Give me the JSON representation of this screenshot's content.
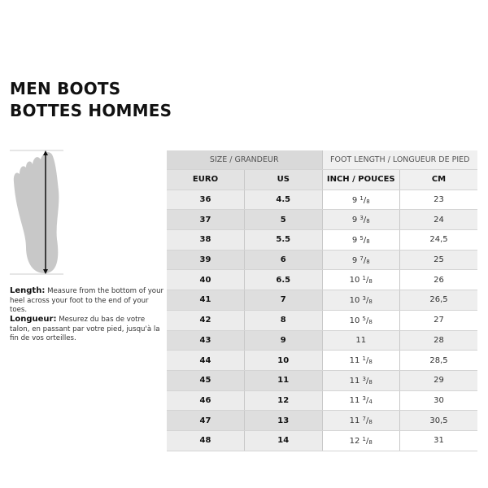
{
  "title": {
    "line1": "MEN BOOTS",
    "line2": "BOTTES HOMMES"
  },
  "instructions": {
    "en_label": "Length:",
    "en_text": "Measure from the bottom of your heel across your foot to the end of your toes.",
    "fr_label": "Longueur:",
    "fr_text": "Mesurez du bas de votre talon, en passant par votre pied, jusqu'à la fin de vos orteilles."
  },
  "table": {
    "group_headers": [
      "SIZE / GRANDEUR",
      "FOOT LENGTH / LONGUEUR DE PIED"
    ],
    "columns": [
      "EURO",
      "US",
      "INCH / POUCES",
      "CM"
    ],
    "rows": [
      {
        "euro": "36",
        "us": "4.5",
        "inch": {
          "whole": "9",
          "num": "1",
          "den": "8"
        },
        "cm": "23"
      },
      {
        "euro": "37",
        "us": "5",
        "inch": {
          "whole": "9",
          "num": "3",
          "den": "8"
        },
        "cm": "24"
      },
      {
        "euro": "38",
        "us": "5.5",
        "inch": {
          "whole": "9",
          "num": "5",
          "den": "8"
        },
        "cm": "24,5"
      },
      {
        "euro": "39",
        "us": "6",
        "inch": {
          "whole": "9",
          "num": "7",
          "den": "8"
        },
        "cm": "25"
      },
      {
        "euro": "40",
        "us": "6.5",
        "inch": {
          "whole": "10",
          "num": "1",
          "den": "8"
        },
        "cm": "26"
      },
      {
        "euro": "41",
        "us": "7",
        "inch": {
          "whole": "10",
          "num": "3",
          "den": "8"
        },
        "cm": "26,5"
      },
      {
        "euro": "42",
        "us": "8",
        "inch": {
          "whole": "10",
          "num": "5",
          "den": "8"
        },
        "cm": "27"
      },
      {
        "euro": "43",
        "us": "9",
        "inch": {
          "whole": "11",
          "num": "",
          "den": ""
        },
        "cm": "28"
      },
      {
        "euro": "44",
        "us": "10",
        "inch": {
          "whole": "11",
          "num": "1",
          "den": "8"
        },
        "cm": "28,5"
      },
      {
        "euro": "45",
        "us": "11",
        "inch": {
          "whole": "11",
          "num": "3",
          "den": "8"
        },
        "cm": "29"
      },
      {
        "euro": "46",
        "us": "12",
        "inch": {
          "whole": "11",
          "num": "3",
          "den": "4"
        },
        "cm": "30"
      },
      {
        "euro": "47",
        "us": "13",
        "inch": {
          "whole": "11",
          "num": "7",
          "den": "8"
        },
        "cm": "30,5"
      },
      {
        "euro": "48",
        "us": "14",
        "inch": {
          "whole": "12",
          "num": "1",
          "den": "8"
        },
        "cm": "31"
      }
    ]
  }
}
